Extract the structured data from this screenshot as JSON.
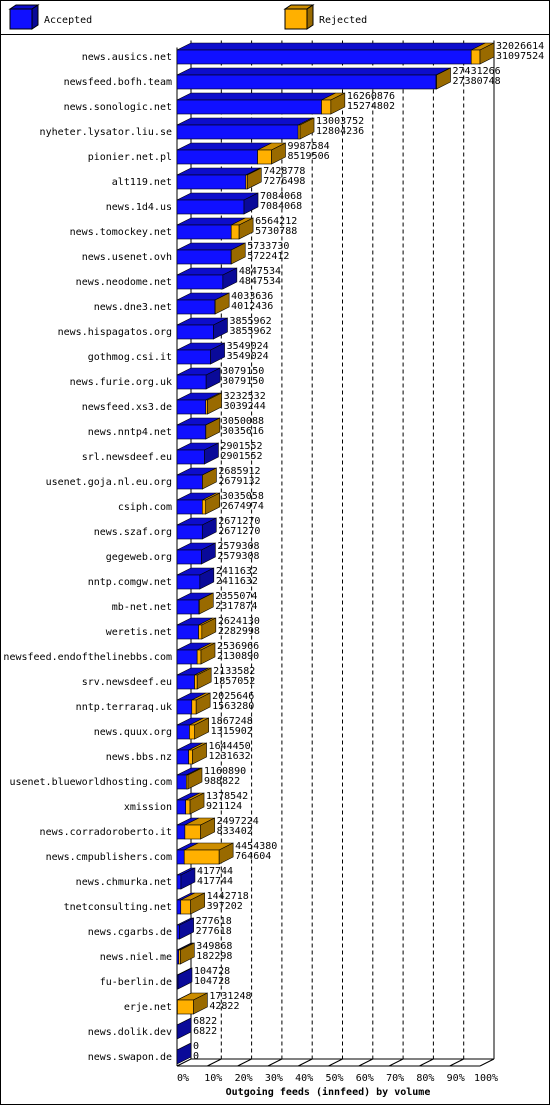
{
  "chart_data": {
    "type": "bar3d-horizontal-stacked",
    "x_axis_label": "Outgoing feeds (innfeed) by volume",
    "categories": [
      "news.ausics.net",
      "newsfeed.bofh.team",
      "news.sonologic.net",
      "nyheter.lysator.liu.se",
      "pionier.net.pl",
      "alt119.net",
      "news.1d4.us",
      "news.tomockey.net",
      "news.usenet.ovh",
      "news.neodome.net",
      "news.dne3.net",
      "news.hispagatos.org",
      "gothmog.csi.it",
      "news.furie.org.uk",
      "newsfeed.xs3.de",
      "news.nntp4.net",
      "srl.newsdeef.eu",
      "usenet.goja.nl.eu.org",
      "csiph.com",
      "news.szaf.org",
      "gegeweb.org",
      "nntp.comgw.net",
      "mb-net.net",
      "weretis.net",
      "newsfeed.endofthelinebbs.com",
      "srv.newsdeef.eu",
      "nntp.terraraq.uk",
      "news.quux.org",
      "news.bbs.nz",
      "usenet.blueworldhosting.com",
      "xmission",
      "news.corradoroberto.it",
      "news.cmpublishers.com",
      "news.chmurka.net",
      "tnetconsulting.net",
      "news.cgarbs.de",
      "news.niel.me",
      "fu-berlin.de",
      "erje.net",
      "news.dolik.dev",
      "news.swapon.de"
    ],
    "offered": [
      32026614,
      27431266,
      16260876,
      13003752,
      9987584,
      7428778,
      7084068,
      6564212,
      5733730,
      4847534,
      4033636,
      3855962,
      3549024,
      3079150,
      3232532,
      3050088,
      2901552,
      2685912,
      3035058,
      2671270,
      2579308,
      2411632,
      2355074,
      2624130,
      2536966,
      2133582,
      2025646,
      1867248,
      1644450,
      1160890,
      1378542,
      2497224,
      4454380,
      417744,
      1442718,
      277618,
      349868,
      104728,
      1731248,
      6822,
      0
    ],
    "series": [
      {
        "name": "Accepted",
        "color": "#1010ff",
        "values": [
          31097524,
          27380748,
          15274802,
          12804236,
          8519506,
          7276498,
          7084068,
          5730788,
          5722412,
          4847534,
          4012436,
          3855962,
          3549024,
          3079150,
          3039244,
          3035616,
          2901552,
          2679132,
          2674974,
          2671270,
          2579308,
          2411632,
          2317874,
          2282998,
          2130890,
          1857052,
          1563280,
          1315902,
          1231632,
          988822,
          921124,
          833402,
          764604,
          417744,
          397202,
          277618,
          182298,
          104728,
          42822,
          6822,
          0
        ]
      },
      {
        "name": "Rejected",
        "color": "#ffb000",
        "values": [
          929090,
          50518,
          986074,
          199516,
          1468078,
          152280,
          0,
          833424,
          11318,
          0,
          21200,
          0,
          0,
          0,
          193288,
          14472,
          0,
          6780,
          360084,
          0,
          0,
          0,
          37200,
          341132,
          406076,
          276530,
          462366,
          551346,
          412818,
          172068,
          457418,
          1663822,
          3689776,
          0,
          1045516,
          0,
          167570,
          0,
          1688426,
          0,
          0
        ]
      }
    ],
    "xlim": [
      0,
      32026614
    ],
    "xticks": [
      {
        "value": 0,
        "label": "0%"
      },
      {
        "value": 3202661.4,
        "label": "10%"
      },
      {
        "value": 6405322.8,
        "label": "20%"
      },
      {
        "value": 9607984.2,
        "label": "30%"
      },
      {
        "value": 12810645.6,
        "label": "40%"
      },
      {
        "value": 16013307,
        "label": "50%"
      },
      {
        "value": 19215968.4,
        "label": "60%"
      },
      {
        "value": 22418629.8,
        "label": "70%"
      },
      {
        "value": 25621291.2,
        "label": "80%"
      },
      {
        "value": 28823952.6,
        "label": "90%"
      },
      {
        "value": 32026614,
        "label": "100%"
      }
    ],
    "grid": true
  }
}
